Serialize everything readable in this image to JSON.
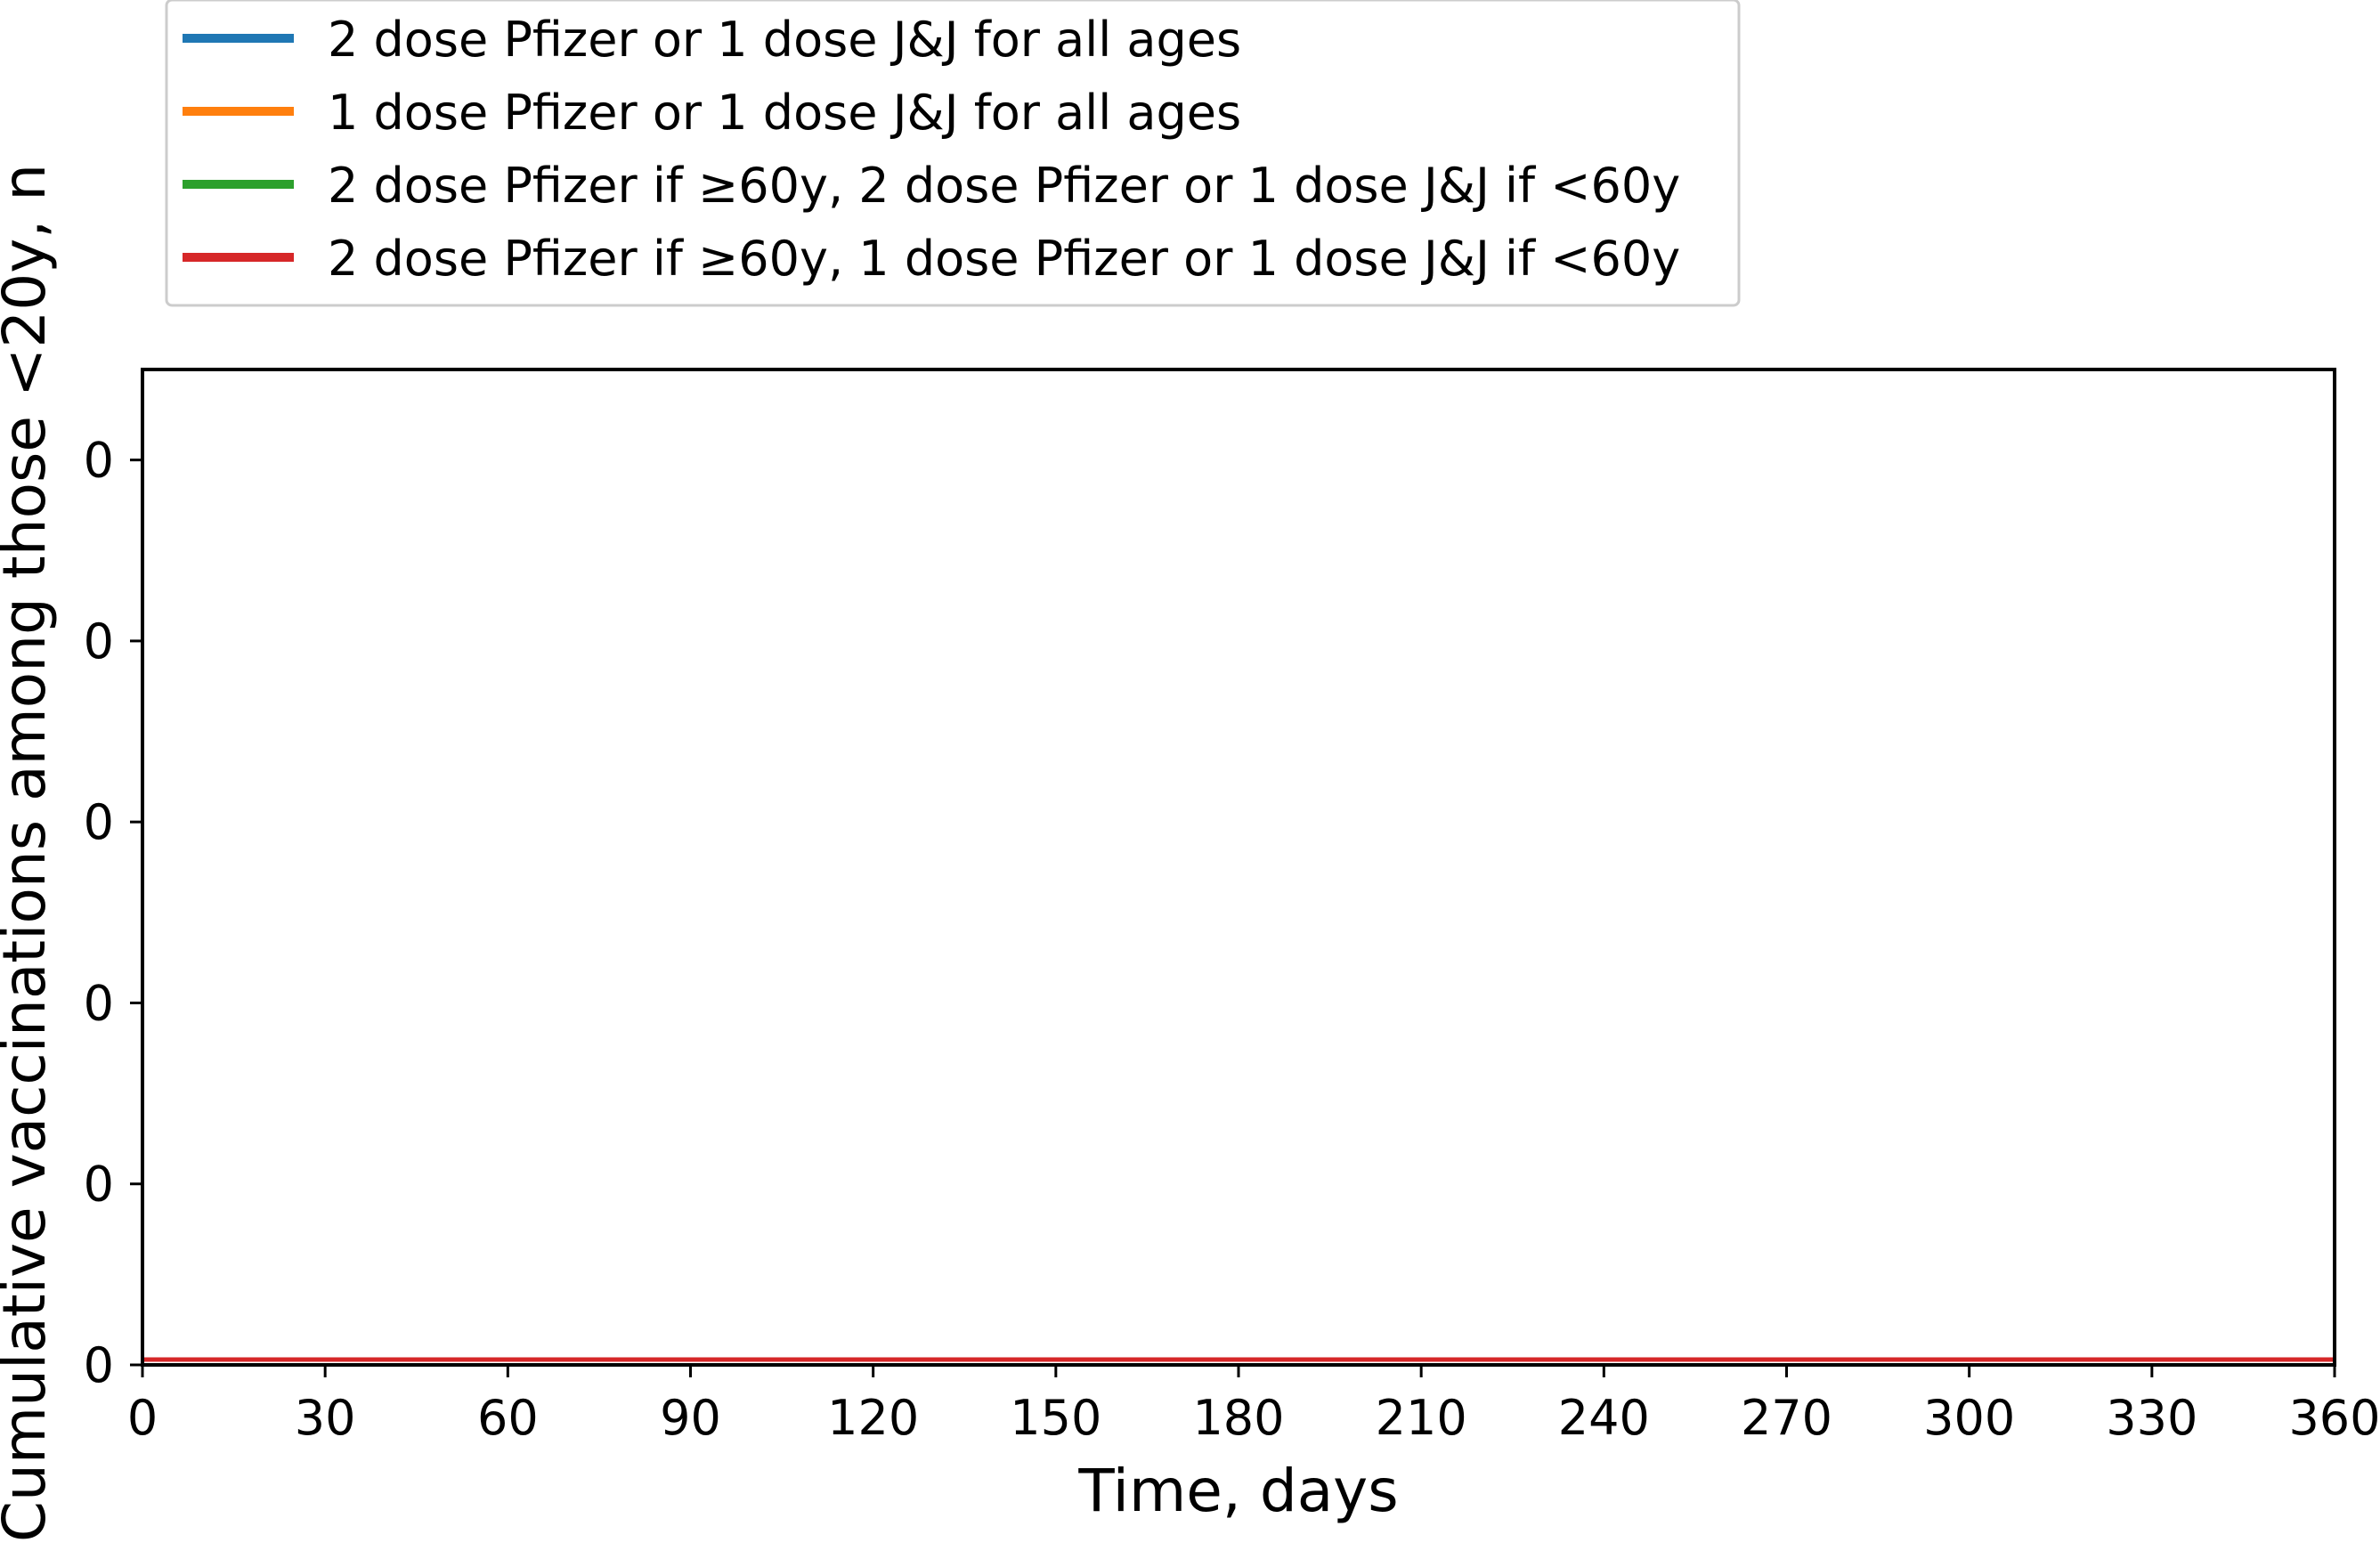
{
  "chart_data": {
    "type": "line",
    "title": "",
    "xlabel": "Time, days",
    "ylabel": "Cumulative vaccinations among those <20y, n",
    "xlim": [
      0,
      360
    ],
    "ylim": [
      0,
      0.055
    ],
    "x_ticks": [
      0,
      30,
      60,
      90,
      120,
      150,
      180,
      210,
      240,
      270,
      300,
      330,
      360
    ],
    "y_ticks": [
      0,
      0.01,
      0.02,
      0.03,
      0.04,
      0.05
    ],
    "y_tick_labels": [
      "0",
      "0",
      "0",
      "0",
      "0",
      "0"
    ],
    "grid": false,
    "legend_position": "above plot, upper-left",
    "x": [
      0,
      360
    ],
    "series": [
      {
        "name": "2 dose Pfizer or 1 dose J&J for all ages",
        "color": "#1f77b4",
        "values": [
          0,
          0
        ]
      },
      {
        "name": "1 dose Pfizer or 1 dose J&J for all ages",
        "color": "#ff7f0e",
        "values": [
          0,
          0
        ]
      },
      {
        "name": "2 dose Pfizer if ≥60y, 2 dose Pfizer or 1 dose J&J if <60y",
        "color": "#2ca02c",
        "values": [
          0,
          0
        ]
      },
      {
        "name": "2 dose Pfizer if ≥60y, 1 dose Pfizer or 1 dose J&J if <60y",
        "color": "#d62728",
        "values": [
          0,
          0
        ]
      }
    ]
  }
}
